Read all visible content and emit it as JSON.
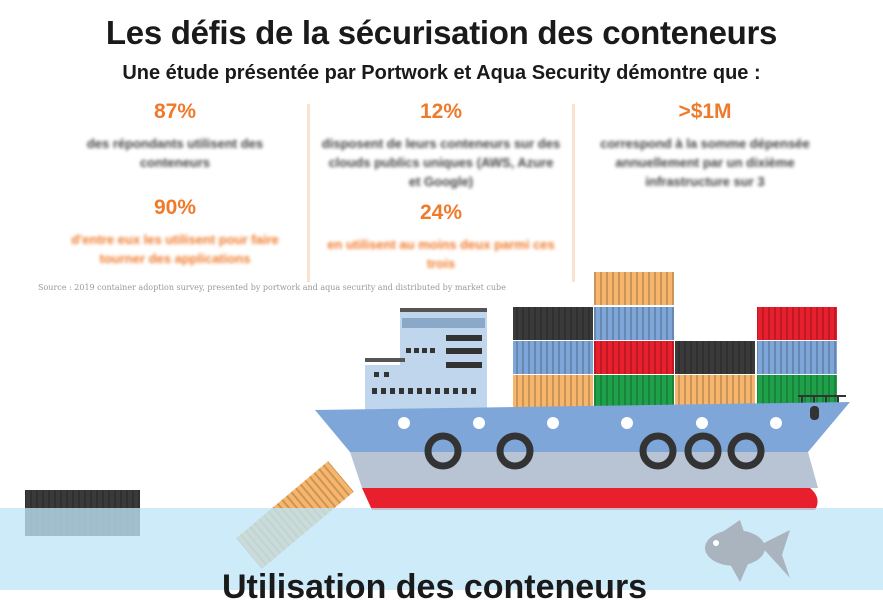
{
  "header": {
    "title": "Les défis de la sécurisation des conteneurs",
    "subtitle": "Une étude présentée par Portwork et Aqua Security démontre que :"
  },
  "stats": [
    {
      "value": "87%",
      "text": "des répondants utilisent des conteneurs"
    },
    {
      "value": "90%",
      "text": "d'entre eux les utilisent pour faire tourner des applications"
    },
    {
      "value": "12%",
      "text": "disposent de leurs conteneurs sur des clouds publics uniques (AWS, Azure et Google)"
    },
    {
      "value": "24%",
      "text": "en utilisent au moins deux parmi ces trois"
    },
    {
      "value": ">$1M",
      "text": "correspond à la somme dépensée annuellement par un dixième infrastructure sur 3"
    }
  ],
  "source": "Source : 2019 container adoption survey, presented by portwork and aqua security and distributed by market cube",
  "bottom_heading": "Utilisation des conteneurs",
  "colors": {
    "accent": "#f07a2b",
    "sea": "#bfe6f7",
    "hull": "#7ea6d8",
    "hull_red": "#e8202e"
  }
}
